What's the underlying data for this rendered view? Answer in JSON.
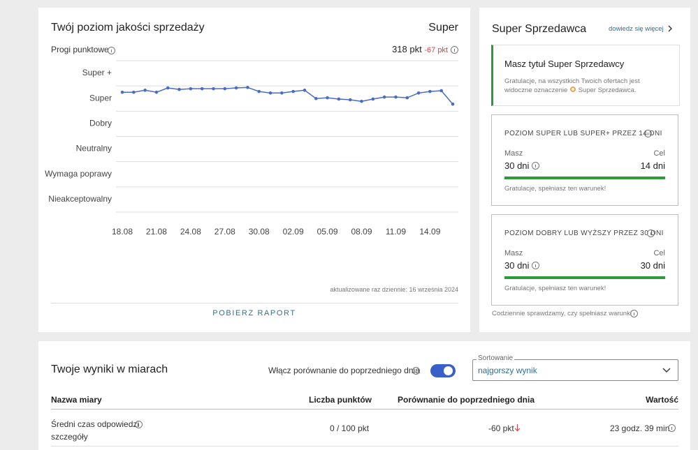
{
  "quality": {
    "title": "Twój poziom jakości sprzedaży",
    "level": "Super",
    "thresholds_label": "Progi punktowe",
    "points": "318 pkt",
    "change": "-67 pkt",
    "updated": "aktualizowane raz dziennie: 16 września 2024",
    "download": "POBIERZ RAPORT"
  },
  "chart_data": {
    "type": "line",
    "categories": [
      "18.08",
      null,
      null,
      "21.08",
      null,
      null,
      "24.08",
      null,
      null,
      "27.08",
      null,
      null,
      "30.08",
      null,
      null,
      "02.09",
      null,
      null,
      "05.09",
      null,
      null,
      "08.09",
      null,
      null,
      "11.09",
      null,
      null,
      "14.09",
      null,
      null
    ],
    "values": [
      4.75,
      4.75,
      4.83,
      4.75,
      4.92,
      4.86,
      4.89,
      4.89,
      4.89,
      4.89,
      4.92,
      4.94,
      4.78,
      4.72,
      4.72,
      4.78,
      4.83,
      4.5,
      4.53,
      4.48,
      4.45,
      4.39,
      4.48,
      4.56,
      4.56,
      4.53,
      4.72,
      4.78,
      4.81,
      4.28
    ],
    "color": "#4a6cc4",
    "ylim": [
      0,
      6
    ],
    "yticks": [
      {
        "value": 0.5,
        "label": "Nieakceptowalny"
      },
      {
        "value": 1.5,
        "label": "Wymaga poprawy"
      },
      {
        "value": 2.5,
        "label": "Neutralny"
      },
      {
        "value": 3.5,
        "label": "Dobry"
      },
      {
        "value": 4.5,
        "label": "Super"
      },
      {
        "value": 5.5,
        "label": "Super +"
      }
    ],
    "grid": true
  },
  "super_seller": {
    "title": "Super Sprzedawca",
    "more_link": "dowiedz się więcej",
    "status_title": "Masz tytuł Super Sprzedawcy",
    "status_text": "Gratulacje, na wszystkich Twoich ofertach jest widoczne oznaczenie",
    "status_badge": "Super Sprzedawca.",
    "conditions": [
      {
        "title": "POZIOM SUPER LUB SUPER+ PRZEZ 14 DNI",
        "have_label": "Masz",
        "have": "30 dni",
        "goal_label": "Cel",
        "goal": "14 dni",
        "note": "Gratulacje, spełniasz ten warunek!"
      },
      {
        "title": "POZIOM DOBRY LUB WYŻSZY PRZEZ 30 DNI",
        "have_label": "Masz",
        "have": "30 dni",
        "goal_label": "Cel",
        "goal": "30 dni",
        "note": "Gratulacje, spełniasz ten warunek!"
      }
    ],
    "footer": "Codziennie sprawdzamy, czy spełniasz warunki"
  },
  "results": {
    "title": "Twoje wyniki w miarach",
    "compare_toggle": "Włącz porównanie do poprzedniego dnia",
    "sort_label": "Sortowanie",
    "sort_value": "najgorszy wynik",
    "table": {
      "headers": [
        "Nazwa miary",
        "Liczba punktów",
        "Porównanie do poprzedniego dnia",
        "Wartość"
      ],
      "rows": [
        {
          "name": "Średni czas odpowiedzi",
          "link": "szczegóły",
          "points": "0 / 100 pkt",
          "compare": "-60 pkt",
          "value": "23 godz. 39 min"
        }
      ]
    }
  }
}
